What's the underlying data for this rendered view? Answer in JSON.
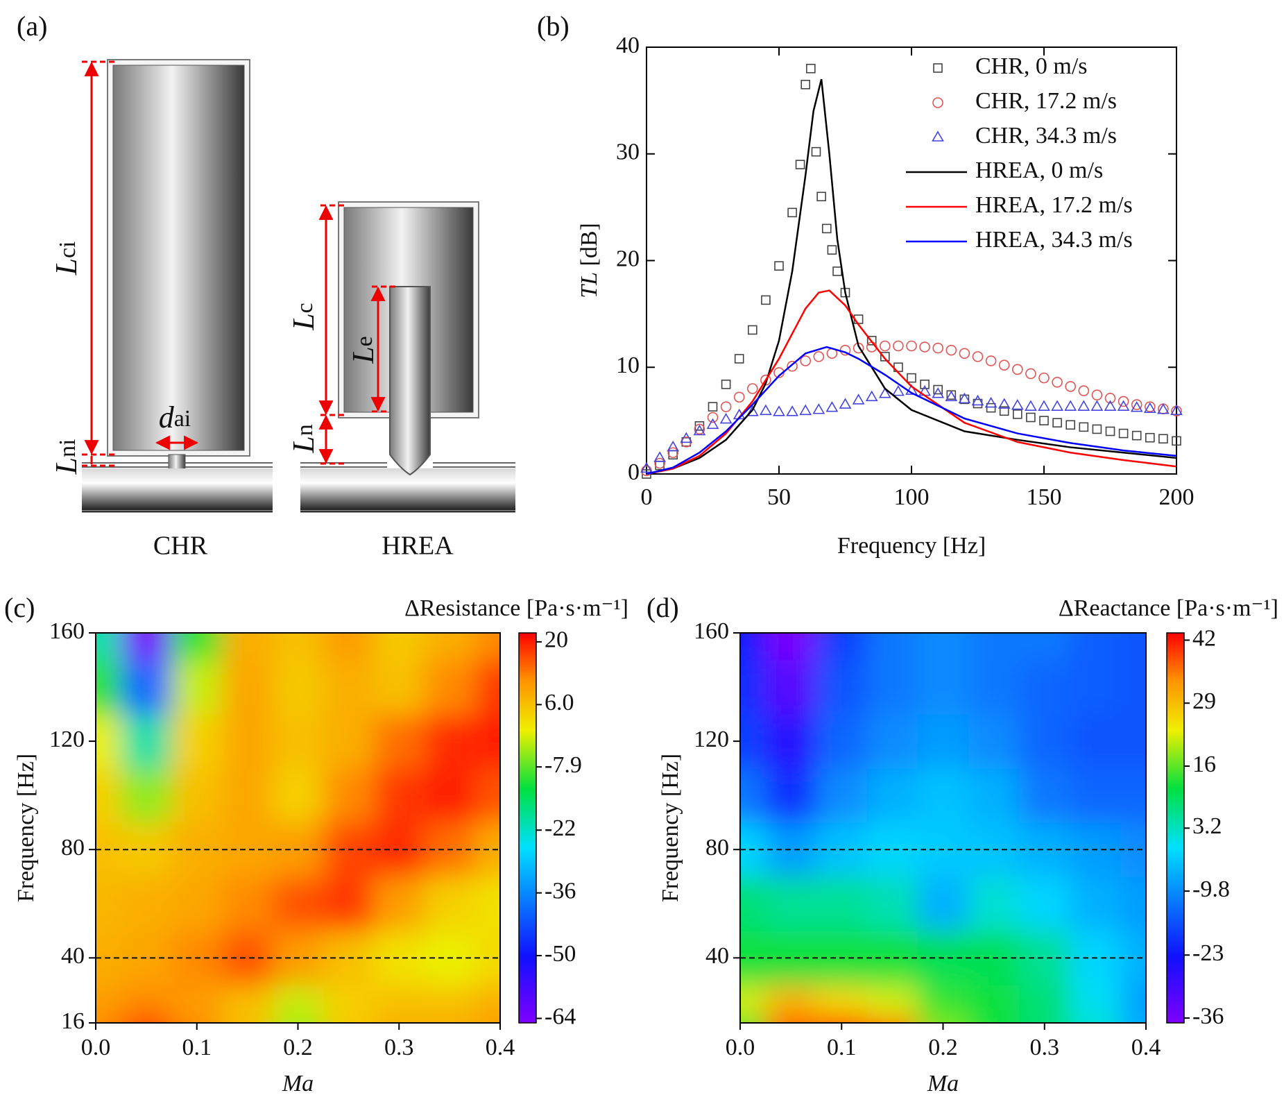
{
  "panel_labels": [
    "(a)",
    "(b)",
    "(c)",
    "(d)"
  ],
  "diagram": {
    "labels": [
      {
        "symbol": "L",
        "subscript": "ci"
      },
      {
        "symbol": "L",
        "subscript": "ni"
      },
      {
        "symbol": "d",
        "subscript": "ai"
      },
      {
        "symbol": "L",
        "subscript": "c"
      },
      {
        "symbol": "L",
        "subscript": "e"
      },
      {
        "symbol": "L",
        "subscript": "n"
      }
    ],
    "captions": [
      "CHR",
      "HREA"
    ]
  },
  "chart_data": [
    {
      "type": "line",
      "xlabel": "Frequency [Hz]",
      "ylabel_symbol": "TL",
      "ylabel_unit": "[dB]",
      "xlim": [
        0,
        200
      ],
      "ylim": [
        0,
        40
      ],
      "xticks": [
        0,
        50,
        100,
        150,
        200
      ],
      "yticks": [
        0,
        10,
        20,
        30,
        40
      ],
      "legend": "upper right",
      "series": [
        {
          "name": "CHR, 0 m/s",
          "color": "#444444",
          "mark": "square",
          "x": [
            0,
            5,
            10,
            15,
            20,
            25,
            30,
            35,
            40,
            45,
            50,
            55,
            58,
            60,
            62,
            64,
            66,
            68,
            70,
            72,
            75,
            80,
            85,
            90,
            95,
            100,
            105,
            110,
            115,
            120,
            125,
            130,
            135,
            140,
            145,
            150,
            155,
            160,
            165,
            170,
            175,
            180,
            185,
            190,
            195,
            200
          ],
          "values": [
            0,
            0.8,
            1.8,
            3,
            4.5,
            6.3,
            8.4,
            10.8,
            13.5,
            16.3,
            19.5,
            24.5,
            29,
            36.5,
            38,
            30.2,
            26,
            23,
            21,
            19,
            17,
            14.5,
            12.5,
            11,
            10,
            9,
            8.4,
            7.9,
            7.4,
            7,
            6.6,
            6.2,
            5.9,
            5.6,
            5.3,
            5,
            4.8,
            4.6,
            4.4,
            4.2,
            4,
            3.8,
            3.6,
            3.4,
            3.3,
            3.1
          ]
        },
        {
          "name": "CHR, 17.2 m/s",
          "color": "#e05555",
          "mark": "circle",
          "x": [
            0,
            5,
            10,
            15,
            20,
            25,
            30,
            35,
            40,
            45,
            50,
            55,
            60,
            65,
            70,
            75,
            80,
            85,
            90,
            95,
            100,
            105,
            110,
            115,
            120,
            125,
            130,
            135,
            140,
            145,
            150,
            155,
            160,
            165,
            170,
            175,
            180,
            185,
            190,
            195,
            200
          ],
          "values": [
            0.3,
            1,
            2,
            3,
            4.2,
            5.3,
            6.3,
            7.2,
            8,
            8.8,
            9.5,
            10.1,
            10.6,
            11,
            11.3,
            11.6,
            11.8,
            11.9,
            12,
            12,
            12,
            11.9,
            11.8,
            11.6,
            11.3,
            11,
            10.6,
            10.2,
            9.8,
            9.4,
            9,
            8.6,
            8.2,
            7.8,
            7.4,
            7.1,
            6.8,
            6.5,
            6.3,
            6.1,
            5.9
          ]
        },
        {
          "name": "CHR, 34.3 m/s",
          "color": "#4444dd",
          "mark": "triangle",
          "x": [
            0,
            5,
            10,
            15,
            20,
            25,
            30,
            35,
            40,
            45,
            50,
            55,
            60,
            65,
            70,
            75,
            80,
            85,
            90,
            95,
            100,
            105,
            110,
            115,
            120,
            125,
            130,
            135,
            140,
            145,
            150,
            155,
            160,
            165,
            170,
            175,
            180,
            185,
            190,
            195,
            200
          ],
          "values": [
            0.5,
            1.5,
            2.5,
            3.3,
            4,
            4.6,
            5.1,
            5.5,
            5.8,
            5.9,
            5.8,
            5.8,
            5.9,
            6,
            6.2,
            6.5,
            6.9,
            7.2,
            7.5,
            7.7,
            7.8,
            7.7,
            7.5,
            7.2,
            7,
            6.8,
            6.6,
            6.5,
            6.4,
            6.3,
            6.3,
            6.3,
            6.3,
            6.3,
            6.3,
            6.3,
            6.3,
            6.2,
            6.1,
            6,
            5.9
          ]
        },
        {
          "name": "HREA, 0 m/s",
          "color": "#000000",
          "mark": "line",
          "x": [
            0,
            10,
            20,
            30,
            40,
            45,
            50,
            55,
            60,
            63,
            66,
            69,
            72,
            75,
            80,
            90,
            100,
            120,
            140,
            160,
            180,
            200
          ],
          "values": [
            0,
            0.5,
            1.5,
            3.2,
            6,
            8.5,
            12.5,
            19,
            28,
            34,
            37,
            30,
            22,
            17,
            12,
            8,
            6,
            4,
            3.2,
            2.5,
            2,
            1.5
          ]
        },
        {
          "name": "HREA, 17.2 m/s",
          "color": "#ff0000",
          "mark": "line",
          "x": [
            0,
            10,
            20,
            30,
            40,
            50,
            60,
            65,
            69,
            75,
            80,
            90,
            100,
            120,
            140,
            160,
            180,
            200
          ],
          "values": [
            0,
            0.5,
            1.7,
            3.8,
            6.8,
            10.8,
            15.5,
            17,
            17.2,
            15.8,
            14,
            10.8,
            8.2,
            4.8,
            3,
            2,
            1.3,
            0.7
          ]
        },
        {
          "name": "HREA, 34.3 m/s",
          "color": "#0000ff",
          "mark": "line",
          "x": [
            0,
            10,
            20,
            30,
            40,
            50,
            60,
            68,
            75,
            80,
            90,
            100,
            120,
            140,
            160,
            180,
            200
          ],
          "values": [
            0,
            0.6,
            2,
            4,
            6.5,
            9.2,
            11.3,
            11.9,
            11.4,
            10.8,
            9.3,
            7.6,
            5.2,
            3.8,
            2.9,
            2.2,
            1.7
          ]
        }
      ]
    },
    {
      "type": "heatmap",
      "colorbar_label": "ΔResistance [Pa·s·m⁻¹]",
      "xlabel": "Ma",
      "ylabel": "Frequency [Hz]",
      "x": [
        0,
        0.05,
        0.1,
        0.15,
        0.2,
        0.25,
        0.3,
        0.35,
        0.4
      ],
      "y": [
        16,
        20,
        40,
        60,
        80,
        100,
        120,
        140,
        160
      ],
      "values": [
        [
          12,
          18,
          12,
          6,
          -4,
          5,
          8,
          8,
          10
        ],
        [
          10,
          12,
          10,
          6,
          -2,
          4,
          6,
          6,
          8
        ],
        [
          8,
          9,
          12,
          16,
          10,
          6,
          2,
          0,
          3
        ],
        [
          7,
          8,
          9,
          12,
          16,
          18,
          10,
          4,
          2
        ],
        [
          6,
          5,
          8,
          9,
          10,
          17,
          19,
          14,
          8
        ],
        [
          4,
          -5,
          6,
          9,
          4,
          12,
          18,
          20,
          16
        ],
        [
          0,
          -20,
          4,
          9,
          6,
          8,
          14,
          19,
          20
        ],
        [
          -10,
          -40,
          -2,
          9,
          5,
          8,
          6,
          12,
          18
        ],
        [
          -20,
          -64,
          -10,
          8,
          6,
          10,
          5,
          8,
          12
        ]
      ],
      "xlim": [
        0,
        0.4
      ],
      "xticks": [
        {
          "value": 0,
          "label": "0.0"
        },
        0.1,
        0.2,
        0.3,
        0.4
      ],
      "ylim": [
        16,
        160
      ],
      "yticks": [
        16,
        40,
        80,
        120,
        160
      ],
      "clim": [
        -65,
        22
      ],
      "cticks": [
        -64,
        -50,
        -36,
        -22,
        -7.9,
        {
          "value": 6,
          "label": "6.0"
        },
        20
      ],
      "colormap": "rainbow",
      "hlines": [
        40,
        80
      ]
    },
    {
      "type": "heatmap",
      "colorbar_label": "ΔReactance [Pa·s·m⁻¹]",
      "xlabel": "Ma",
      "ylabel": "Frequency [Hz]",
      "x": [
        0,
        0.05,
        0.1,
        0.15,
        0.2,
        0.25,
        0.3,
        0.35,
        0.4
      ],
      "y": [
        16,
        20,
        40,
        60,
        80,
        100,
        120,
        140,
        160
      ],
      "values": [
        [
          14,
          38,
          42,
          36,
          18,
          12,
          8,
          2,
          -6
        ],
        [
          22,
          30,
          26,
          22,
          14,
          12,
          8,
          0,
          -8
        ],
        [
          12,
          12,
          12,
          12,
          10,
          10,
          6,
          -2,
          -6
        ],
        [
          8,
          6,
          6,
          4,
          -6,
          2,
          -2,
          -6,
          -8
        ],
        [
          -2,
          -8,
          -4,
          -2,
          -3,
          -4,
          -6,
          -8,
          -10
        ],
        [
          -12,
          -20,
          -10,
          -6,
          -4,
          -6,
          -12,
          -14,
          -14
        ],
        [
          -18,
          -26,
          -14,
          -10,
          -8,
          -10,
          -14,
          -16,
          -16
        ],
        [
          -20,
          -32,
          -16,
          -12,
          -10,
          -12,
          -14,
          -15,
          -16
        ],
        [
          -22,
          -36,
          -18,
          -12,
          -10,
          -12,
          -12,
          -15,
          -16
        ]
      ],
      "xlim": [
        0,
        0.4
      ],
      "xticks": [
        {
          "value": 0,
          "label": "0.0"
        },
        0.1,
        0.2,
        0.3,
        0.4
      ],
      "ylim": [
        16,
        160
      ],
      "yticks": [
        40,
        80,
        120,
        160
      ],
      "clim": [
        -37,
        43.5
      ],
      "cticks": [
        -36,
        -23,
        -9.8,
        3.2,
        16,
        29,
        42
      ],
      "colormap": "rainbow",
      "hlines": [
        40,
        80
      ]
    }
  ]
}
